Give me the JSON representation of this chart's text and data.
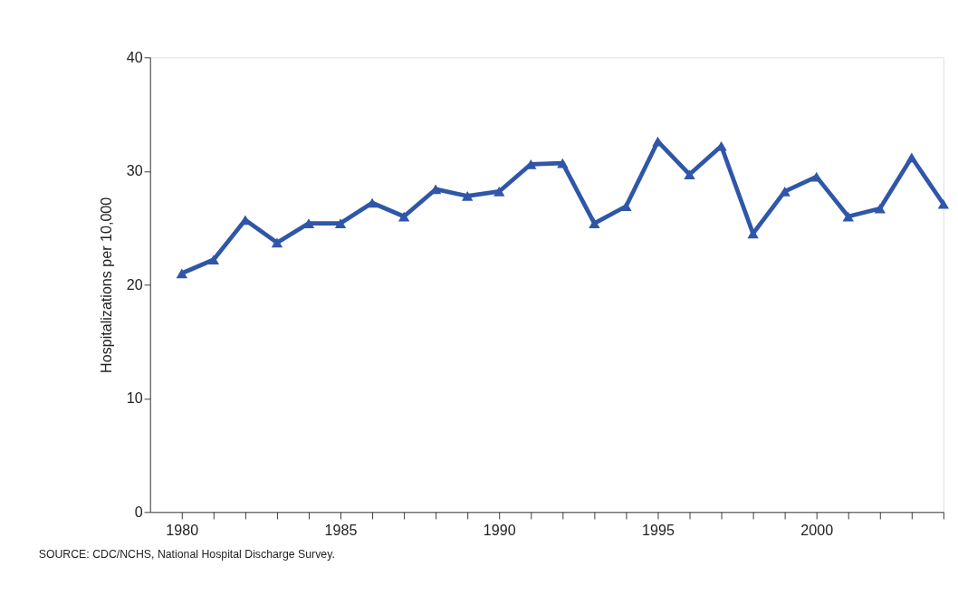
{
  "chart_data": {
    "type": "line",
    "ylabel": "Hospitalizations per 10,000",
    "x": [
      1980,
      1981,
      1982,
      1983,
      1984,
      1985,
      1986,
      1987,
      1988,
      1989,
      1990,
      1991,
      1992,
      1993,
      1994,
      1995,
      1996,
      1997,
      1998,
      1999,
      2000,
      2001,
      2002,
      2003,
      2004
    ],
    "series": [
      {
        "color": "#2f56a8",
        "values": [
          21.0,
          22.2,
          25.7,
          23.7,
          25.4,
          25.4,
          27.2,
          26.0,
          28.4,
          27.8,
          28.2,
          30.6,
          30.7,
          25.4,
          26.9,
          32.6,
          29.7,
          32.2,
          24.5,
          28.2,
          29.5,
          26.0,
          26.7,
          31.2,
          27.1
        ]
      }
    ],
    "xlim": [
      1979,
      2004
    ],
    "xticks": [
      1980,
      {
        "value": 1981,
        "label": null
      },
      {
        "value": 1982,
        "label": null
      },
      {
        "value": 1983,
        "label": null
      },
      {
        "value": 1984,
        "label": null
      },
      1985,
      {
        "value": 1986,
        "label": null
      },
      {
        "value": 1987,
        "label": null
      },
      {
        "value": 1988,
        "label": null
      },
      {
        "value": 1989,
        "label": null
      },
      1990,
      {
        "value": 1991,
        "label": null
      },
      {
        "value": 1992,
        "label": null
      },
      {
        "value": 1993,
        "label": null
      },
      {
        "value": 1994,
        "label": null
      },
      1995,
      {
        "value": 1996,
        "label": null
      },
      {
        "value": 1997,
        "label": null
      },
      {
        "value": 1998,
        "label": null
      },
      {
        "value": 1999,
        "label": null
      },
      2000,
      {
        "value": 2001,
        "label": null
      },
      {
        "value": 2002,
        "label": null
      },
      {
        "value": 2003,
        "label": null
      },
      {
        "value": 2004,
        "label": null
      }
    ],
    "ylim": [
      0,
      40
    ],
    "yticks": [
      0,
      10,
      20,
      30,
      40
    ],
    "grid": false,
    "marker": "triangle",
    "line_style": "solid",
    "annotations": [
      "SOURCE: CDC/NCHS, National Hospital Discharge Survey."
    ]
  }
}
